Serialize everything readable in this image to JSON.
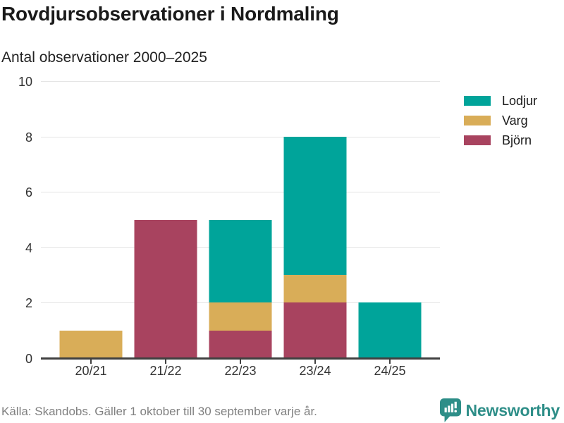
{
  "title": "Rovdjursobservationer i Nordmaling",
  "subtitle": "Antal observationer 2000–2025",
  "footer": {
    "source": "Källa: Skandobs. Gäller 1 oktober till 30 september varje år.",
    "brand": "Newsworthy"
  },
  "colors": {
    "lodjur": "#00a49a",
    "varg": "#d9ad58",
    "bjorn": "#a8435f",
    "grid": "#e4e4e4",
    "axis": "#404040",
    "brand": "#2e8e88"
  },
  "chart_data": {
    "type": "bar",
    "stacked": true,
    "title": "Rovdjursobservationer i Nordmaling",
    "subtitle": "Antal observationer 2000–2025",
    "categories": [
      "20/21",
      "21/22",
      "22/23",
      "23/24",
      "24/25"
    ],
    "series": [
      {
        "name": "Lodjur",
        "color": "#00a49a",
        "values": [
          0,
          0,
          3,
          5,
          2
        ]
      },
      {
        "name": "Varg",
        "color": "#d9ad58",
        "values": [
          1,
          0,
          1,
          1,
          0
        ]
      },
      {
        "name": "Björn",
        "color": "#a8435f",
        "values": [
          0,
          5,
          1,
          2,
          0
        ]
      }
    ],
    "stack_order_bottom_to_top": [
      "Björn",
      "Varg",
      "Lodjur"
    ],
    "totals": [
      1,
      5,
      5,
      8,
      2
    ],
    "xlabel": "",
    "ylabel": "",
    "ylim": [
      0,
      10
    ],
    "yticks": [
      0,
      2,
      4,
      6,
      8,
      10
    ],
    "grid": true,
    "legend_position": "right"
  }
}
